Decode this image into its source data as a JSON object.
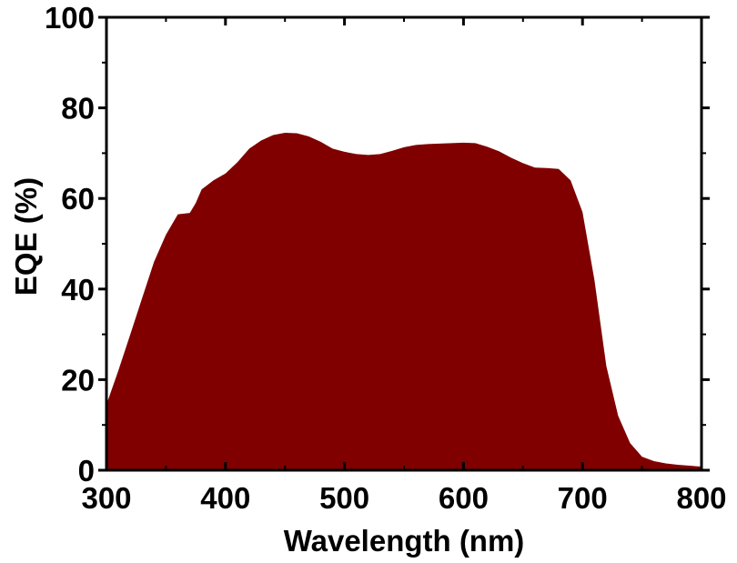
{
  "chart_data": {
    "type": "area",
    "title": "",
    "xlabel": "Wavelength (nm)",
    "ylabel": "EQE (%)",
    "xlim": [
      300,
      800
    ],
    "ylim": [
      0,
      100
    ],
    "x_ticks": [
      300,
      400,
      500,
      600,
      700,
      800
    ],
    "y_ticks": [
      0,
      20,
      40,
      60,
      80,
      100
    ],
    "x_tick_labels": [
      "300",
      "400",
      "500",
      "600",
      "700",
      "800"
    ],
    "y_tick_labels": [
      "0",
      "20",
      "40",
      "60",
      "80",
      "100"
    ],
    "grid": false,
    "fill_color": "#800000",
    "series": [
      {
        "x": [
          300,
          310,
          320,
          330,
          340,
          350,
          360,
          370,
          375,
          380,
          390,
          400,
          410,
          420,
          430,
          440,
          450,
          460,
          470,
          480,
          490,
          500,
          510,
          520,
          530,
          540,
          550,
          560,
          570,
          580,
          590,
          600,
          610,
          620,
          630,
          640,
          650,
          660,
          670,
          680,
          690,
          700,
          710,
          720,
          730,
          740,
          750,
          760,
          770,
          780,
          790,
          800
        ],
        "y": [
          14.5,
          22,
          30,
          38,
          46,
          52,
          56.5,
          56.8,
          59,
          62,
          64,
          65.5,
          68,
          71,
          72.8,
          74,
          74.5,
          74.4,
          73.7,
          72.5,
          71,
          70.3,
          69.8,
          69.6,
          69.8,
          70.5,
          71.3,
          71.8,
          72,
          72.1,
          72.2,
          72.3,
          72.2,
          71.4,
          70.4,
          69,
          67.8,
          66.8,
          66.7,
          66.5,
          64,
          57,
          42,
          23,
          12,
          6,
          3,
          2,
          1.5,
          1.2,
          1,
          0.8
        ]
      }
    ]
  }
}
